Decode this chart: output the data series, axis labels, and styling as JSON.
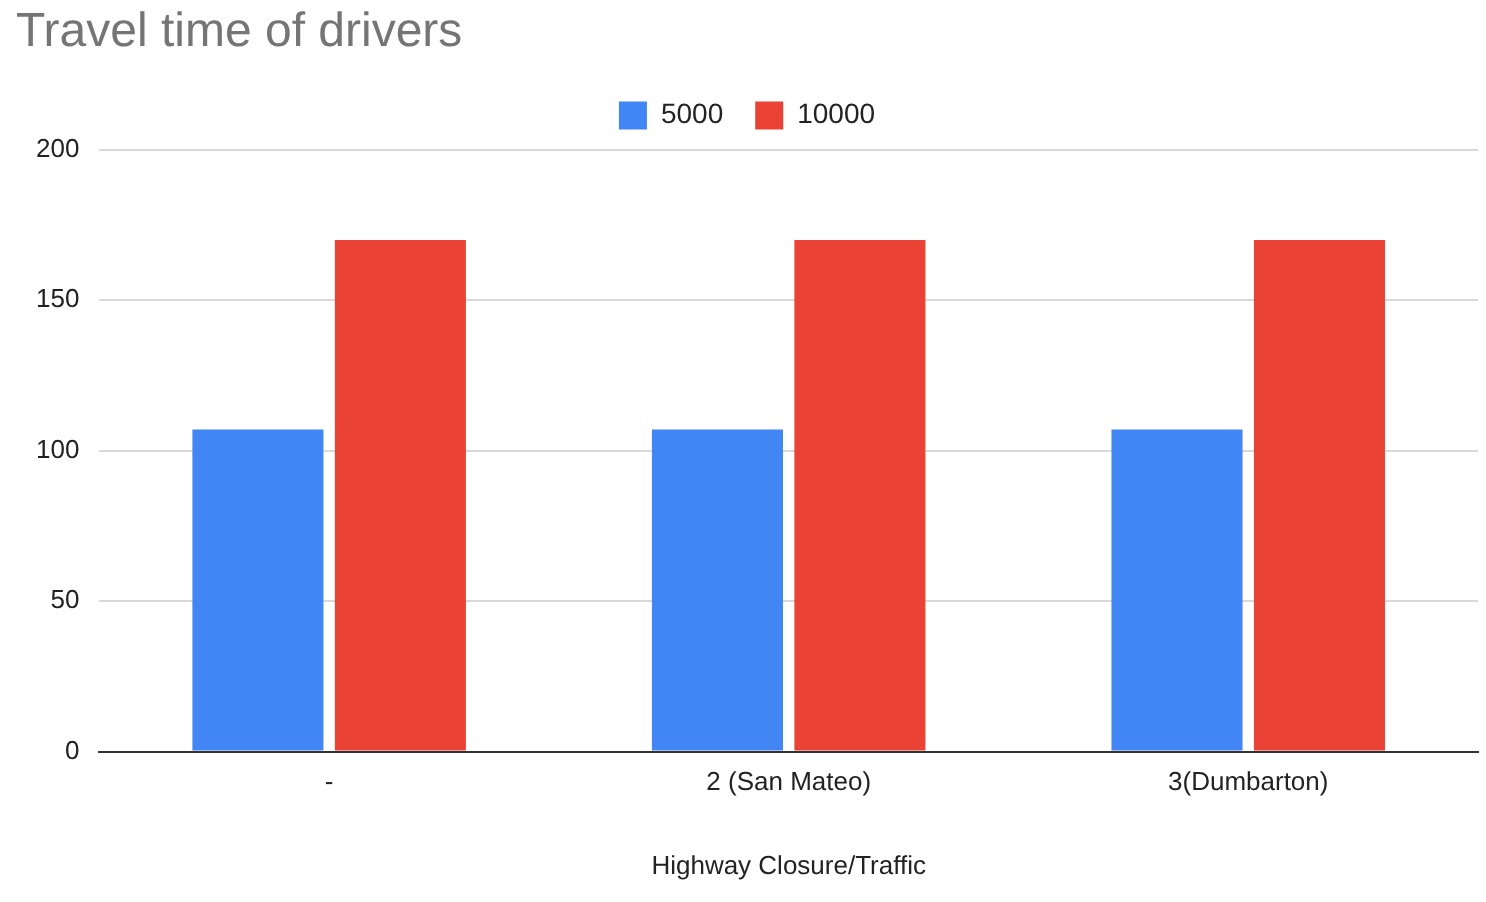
{
  "chart_data": {
    "type": "bar",
    "title": "Travel time of drivers",
    "xlabel": "Highway Closure/Traffic",
    "categories": [
      "-",
      "2 (San Mateo)",
      "3(Dumbarton)"
    ],
    "series": [
      {
        "name": "5000",
        "color": "#4285f4",
        "values": [
          107,
          107,
          107
        ]
      },
      {
        "name": "10000",
        "color": "#ea4335",
        "values": [
          170,
          170,
          170
        ]
      }
    ],
    "ylim": [
      0,
      200
    ],
    "yticks": [
      0,
      50,
      100,
      150,
      200
    ],
    "grid": "y",
    "legend": "top"
  }
}
